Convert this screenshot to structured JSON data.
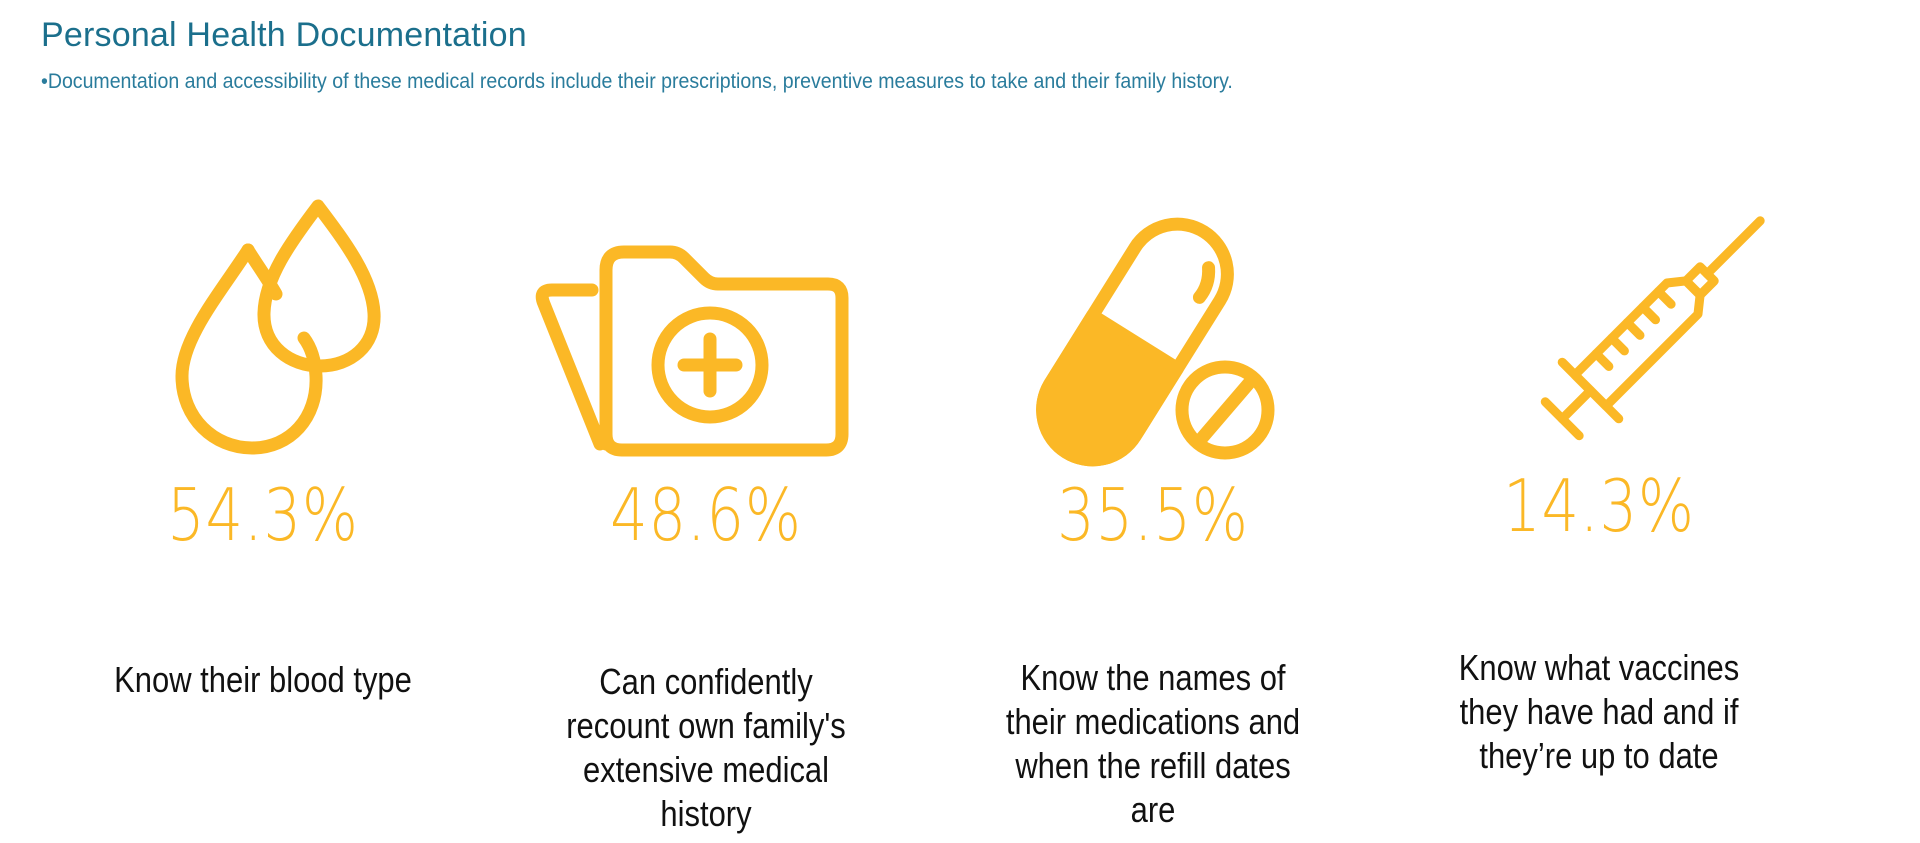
{
  "header": {
    "title": "Personal Health Documentation",
    "subtitle": "•Documentation and accessibility of these medical records include their prescriptions, preventive measures to take and their family history."
  },
  "accent_color": "#fbb826",
  "title_color": "#1b6f8c",
  "stats": [
    {
      "icon": "blood-drops-icon",
      "value": "54.3%",
      "label_lines": [
        "Know their blood type"
      ]
    },
    {
      "icon": "medical-folder-icon",
      "value": "48.6%",
      "label_lines": [
        "Can confidently",
        "recount own family's",
        "extensive medical",
        "history"
      ]
    },
    {
      "icon": "pill-capsule-icon",
      "value": "35.5%",
      "label_lines": [
        "Know the names of",
        "their medications and",
        "when the refill dates",
        "are"
      ]
    },
    {
      "icon": "syringe-icon",
      "value": "14.3%",
      "label_lines": [
        "Know what vaccines",
        "they have had and if",
        "they’re up to date"
      ]
    }
  ]
}
